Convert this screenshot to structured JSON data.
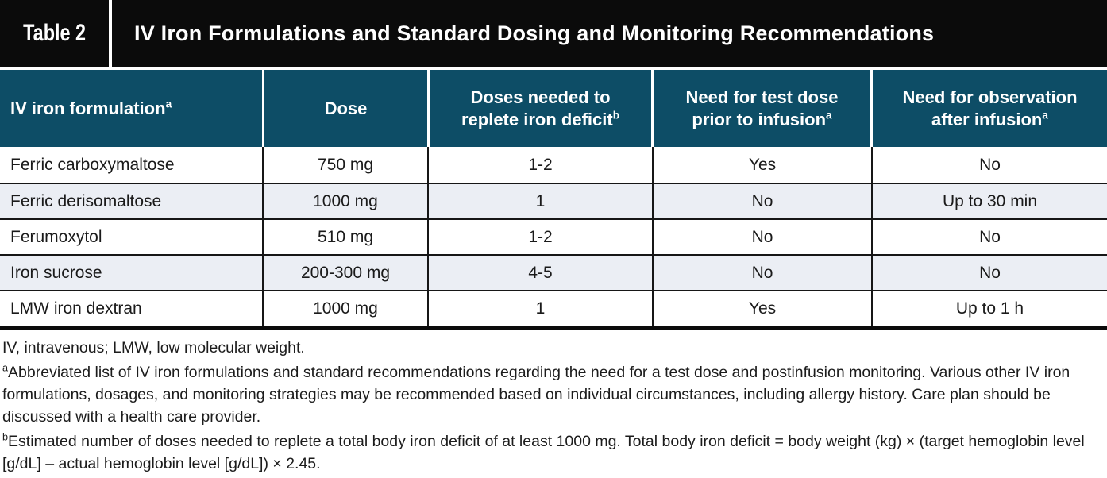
{
  "banner": {
    "label": "Table 2",
    "title": "IV Iron Formulations and Standard Dosing and Monitoring Recommendations"
  },
  "table": {
    "columns": [
      {
        "label": "IV iron formulation",
        "sup": "a"
      },
      {
        "label": "Dose",
        "sup": ""
      },
      {
        "label": "Doses needed to\nreplete iron deficit",
        "sup": "b"
      },
      {
        "label": "Need for test dose\nprior to infusion",
        "sup": "a"
      },
      {
        "label": "Need for observation\nafter infusion",
        "sup": "a"
      }
    ],
    "rows": [
      [
        "Ferric carboxymaltose",
        "750 mg",
        "1-2",
        "Yes",
        "No"
      ],
      [
        "Ferric derisomaltose",
        "1000 mg",
        "1",
        "No",
        "Up to 30 min"
      ],
      [
        "Ferumoxytol",
        "510 mg",
        "1-2",
        "No",
        "No"
      ],
      [
        "Iron sucrose",
        "200-300 mg",
        "4-5",
        "No",
        "No"
      ],
      [
        "LMW iron dextran",
        "1000 mg",
        "1",
        "Yes",
        "Up to 1 h"
      ]
    ]
  },
  "footnotes": {
    "abbreviations": "IV, intravenous; LMW, low molecular weight.",
    "a_marker": "a",
    "a_text": "Abbreviated list of IV iron formulations and standard recommendations regarding the need for a test dose and postinfusion monitoring. Various other IV iron formulations, dosages, and monitoring strategies may be recommended based on individual circumstances, including allergy history. Care plan should be discussed with a health care provider.",
    "b_marker": "b",
    "b_text": "Estimated number of doses needed to replete a total body iron deficit of at least 1000 mg. Total body iron deficit = body weight (kg) × (target hemoglobin level [g/dL] – actual hemoglobin level [g/dL]) × 2.45."
  },
  "colors": {
    "banner_black": "#0b0b0b",
    "header_teal": "#0d4d66",
    "row_alt": "#ebeef4",
    "rule_black": "#161616"
  }
}
